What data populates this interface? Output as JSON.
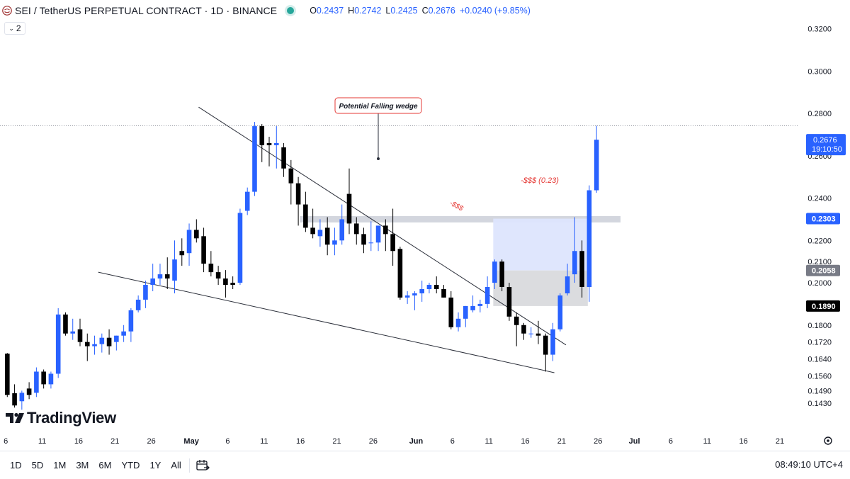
{
  "header": {
    "symbol_title": "SEI / TetherUS PERPETUAL CONTRACT · 1D · BINANCE",
    "ohlc": [
      {
        "key": "O",
        "value": "0.2437"
      },
      {
        "key": "H",
        "value": "0.2742"
      },
      {
        "key": "L",
        "value": "0.2425"
      },
      {
        "key": "C",
        "value": "0.2676"
      }
    ],
    "change": "+0.0240 (+9.85%)",
    "legend_toggle": "2"
  },
  "colors": {
    "up": "#2962ff",
    "down": "#000000",
    "zone_gray": "#d1d4dc",
    "zone_blue": "#dbe4ff",
    "annotation_red": "#e53935"
  },
  "chart_data": {
    "type": "candlestick",
    "symbol": "SEIUSDT.P",
    "interval": "1D",
    "ylim": [
      0.1394,
      0.3276
    ],
    "y_ticks": [
      "0.3200",
      "0.3000",
      "0.2800",
      "0.2600",
      "0.2400",
      "0.2200",
      "0.2100",
      "0.2000",
      "0.1800",
      "0.1720",
      "0.1640",
      "0.1560",
      "0.1490",
      "0.1430"
    ],
    "x_ticks": [
      "6",
      "11",
      "16",
      "21",
      "26",
      "May",
      "6",
      "11",
      "16",
      "21",
      "26",
      "Jun",
      "6",
      "11",
      "16",
      "21",
      "26",
      "Jul",
      "6",
      "11",
      "16",
      "21"
    ],
    "candles": [
      {
        "o": 0.1665,
        "h": 0.1668,
        "l": 0.146,
        "c": 0.147
      },
      {
        "o": 0.1478,
        "h": 0.152,
        "l": 0.141,
        "c": 0.142
      },
      {
        "o": 0.144,
        "h": 0.149,
        "l": 0.14,
        "c": 0.148
      },
      {
        "o": 0.15,
        "h": 0.153,
        "l": 0.145,
        "c": 0.147
      },
      {
        "o": 0.148,
        "h": 0.16,
        "l": 0.146,
        "c": 0.158
      },
      {
        "o": 0.158,
        "h": 0.159,
        "l": 0.15,
        "c": 0.152
      },
      {
        "o": 0.152,
        "h": 0.158,
        "l": 0.15,
        "c": 0.157
      },
      {
        "o": 0.157,
        "h": 0.188,
        "l": 0.155,
        "c": 0.185
      },
      {
        "o": 0.185,
        "h": 0.186,
        "l": 0.175,
        "c": 0.176
      },
      {
        "o": 0.176,
        "h": 0.183,
        "l": 0.173,
        "c": 0.177
      },
      {
        "o": 0.178,
        "h": 0.183,
        "l": 0.17,
        "c": 0.172
      },
      {
        "o": 0.172,
        "h": 0.176,
        "l": 0.163,
        "c": 0.17
      },
      {
        "o": 0.17,
        "h": 0.175,
        "l": 0.166,
        "c": 0.171
      },
      {
        "o": 0.171,
        "h": 0.176,
        "l": 0.167,
        "c": 0.174
      },
      {
        "o": 0.174,
        "h": 0.178,
        "l": 0.166,
        "c": 0.17
      },
      {
        "o": 0.172,
        "h": 0.175,
        "l": 0.168,
        "c": 0.175
      },
      {
        "o": 0.175,
        "h": 0.18,
        "l": 0.172,
        "c": 0.177
      },
      {
        "o": 0.177,
        "h": 0.188,
        "l": 0.172,
        "c": 0.187
      },
      {
        "o": 0.187,
        "h": 0.194,
        "l": 0.186,
        "c": 0.192
      },
      {
        "o": 0.192,
        "h": 0.201,
        "l": 0.188,
        "c": 0.199
      },
      {
        "o": 0.199,
        "h": 0.209,
        "l": 0.196,
        "c": 0.202
      },
      {
        "o": 0.202,
        "h": 0.209,
        "l": 0.199,
        "c": 0.204
      },
      {
        "o": 0.204,
        "h": 0.212,
        "l": 0.197,
        "c": 0.202
      },
      {
        "o": 0.201,
        "h": 0.22,
        "l": 0.195,
        "c": 0.211
      },
      {
        "o": 0.215,
        "h": 0.221,
        "l": 0.208,
        "c": 0.213
      },
      {
        "o": 0.214,
        "h": 0.228,
        "l": 0.208,
        "c": 0.225
      },
      {
        "o": 0.225,
        "h": 0.23,
        "l": 0.219,
        "c": 0.221
      },
      {
        "o": 0.222,
        "h": 0.226,
        "l": 0.205,
        "c": 0.209
      },
      {
        "o": 0.209,
        "h": 0.215,
        "l": 0.203,
        "c": 0.205
      },
      {
        "o": 0.205,
        "h": 0.208,
        "l": 0.199,
        "c": 0.202
      },
      {
        "o": 0.202,
        "h": 0.206,
        "l": 0.193,
        "c": 0.199
      },
      {
        "o": 0.2,
        "h": 0.203,
        "l": 0.197,
        "c": 0.199
      },
      {
        "o": 0.2,
        "h": 0.235,
        "l": 0.199,
        "c": 0.233
      },
      {
        "o": 0.234,
        "h": 0.245,
        "l": 0.232,
        "c": 0.243
      },
      {
        "o": 0.243,
        "h": 0.276,
        "l": 0.241,
        "c": 0.274
      },
      {
        "o": 0.274,
        "h": 0.275,
        "l": 0.257,
        "c": 0.265
      },
      {
        "o": 0.266,
        "h": 0.269,
        "l": 0.255,
        "c": 0.265
      },
      {
        "o": 0.265,
        "h": 0.274,
        "l": 0.254,
        "c": 0.266
      },
      {
        "o": 0.264,
        "h": 0.266,
        "l": 0.25,
        "c": 0.254
      },
      {
        "o": 0.254,
        "h": 0.258,
        "l": 0.237,
        "c": 0.247
      },
      {
        "o": 0.247,
        "h": 0.25,
        "l": 0.227,
        "c": 0.237
      },
      {
        "o": 0.237,
        "h": 0.243,
        "l": 0.224,
        "c": 0.226
      },
      {
        "o": 0.226,
        "h": 0.235,
        "l": 0.221,
        "c": 0.223
      },
      {
        "o": 0.222,
        "h": 0.23,
        "l": 0.217,
        "c": 0.225
      },
      {
        "o": 0.226,
        "h": 0.231,
        "l": 0.213,
        "c": 0.218
      },
      {
        "o": 0.218,
        "h": 0.226,
        "l": 0.213,
        "c": 0.22
      },
      {
        "o": 0.22,
        "h": 0.237,
        "l": 0.218,
        "c": 0.23
      },
      {
        "o": 0.242,
        "h": 0.254,
        "l": 0.223,
        "c": 0.228
      },
      {
        "o": 0.228,
        "h": 0.231,
        "l": 0.218,
        "c": 0.223
      },
      {
        "o": 0.223,
        "h": 0.226,
        "l": 0.214,
        "c": 0.218
      },
      {
        "o": 0.219,
        "h": 0.229,
        "l": 0.215,
        "c": 0.219
      },
      {
        "o": 0.219,
        "h": 0.226,
        "l": 0.215,
        "c": 0.227
      },
      {
        "o": 0.227,
        "h": 0.23,
        "l": 0.215,
        "c": 0.223
      },
      {
        "o": 0.223,
        "h": 0.235,
        "l": 0.208,
        "c": 0.215
      },
      {
        "o": 0.216,
        "h": 0.217,
        "l": 0.192,
        "c": 0.193
      },
      {
        "o": 0.193,
        "h": 0.196,
        "l": 0.19,
        "c": 0.194
      },
      {
        "o": 0.194,
        "h": 0.196,
        "l": 0.187,
        "c": 0.195
      },
      {
        "o": 0.195,
        "h": 0.201,
        "l": 0.191,
        "c": 0.197
      },
      {
        "o": 0.197,
        "h": 0.2,
        "l": 0.195,
        "c": 0.199
      },
      {
        "o": 0.199,
        "h": 0.203,
        "l": 0.195,
        "c": 0.197
      },
      {
        "o": 0.197,
        "h": 0.199,
        "l": 0.193,
        "c": 0.193
      },
      {
        "o": 0.193,
        "h": 0.196,
        "l": 0.178,
        "c": 0.179
      },
      {
        "o": 0.179,
        "h": 0.186,
        "l": 0.177,
        "c": 0.183
      },
      {
        "o": 0.183,
        "h": 0.189,
        "l": 0.179,
        "c": 0.189
      },
      {
        "o": 0.187,
        "h": 0.194,
        "l": 0.186,
        "c": 0.189
      },
      {
        "o": 0.189,
        "h": 0.192,
        "l": 0.186,
        "c": 0.19
      },
      {
        "o": 0.19,
        "h": 0.203,
        "l": 0.188,
        "c": 0.198
      },
      {
        "o": 0.2,
        "h": 0.211,
        "l": 0.197,
        "c": 0.21
      },
      {
        "o": 0.21,
        "h": 0.211,
        "l": 0.196,
        "c": 0.198
      },
      {
        "o": 0.198,
        "h": 0.2,
        "l": 0.182,
        "c": 0.184
      },
      {
        "o": 0.184,
        "h": 0.186,
        "l": 0.17,
        "c": 0.18
      },
      {
        "o": 0.18,
        "h": 0.181,
        "l": 0.173,
        "c": 0.176
      },
      {
        "o": 0.176,
        "h": 0.179,
        "l": 0.174,
        "c": 0.176
      },
      {
        "o": 0.176,
        "h": 0.182,
        "l": 0.171,
        "c": 0.175
      },
      {
        "o": 0.175,
        "h": 0.176,
        "l": 0.158,
        "c": 0.166
      },
      {
        "o": 0.166,
        "h": 0.181,
        "l": 0.163,
        "c": 0.178
      },
      {
        "o": 0.178,
        "h": 0.195,
        "l": 0.177,
        "c": 0.194
      },
      {
        "o": 0.195,
        "h": 0.209,
        "l": 0.194,
        "c": 0.203
      },
      {
        "o": 0.204,
        "h": 0.231,
        "l": 0.2,
        "c": 0.215
      },
      {
        "o": 0.215,
        "h": 0.22,
        "l": 0.193,
        "c": 0.198
      },
      {
        "o": 0.198,
        "h": 0.246,
        "l": 0.191,
        "c": 0.2437
      },
      {
        "o": 0.2437,
        "h": 0.2742,
        "l": 0.2425,
        "c": 0.2676
      }
    ],
    "trendlines": [
      {
        "name": "upper-wedge-line",
        "from": [
          26.3,
          0.283
        ],
        "to": [
          76.8,
          0.1706
        ]
      },
      {
        "name": "lower-wedge-line",
        "from": [
          12.5,
          0.205
        ],
        "to": [
          75.2,
          0.1575
        ]
      }
    ],
    "zones": [
      {
        "name": "liquidity-zone",
        "x": [
          40.2,
          84.3
        ],
        "y": [
          0.2285,
          0.2315
        ]
      },
      {
        "name": "target-zone-blue",
        "x": [
          66.8,
          79.8
        ],
        "y": [
          0.2058,
          0.2303
        ]
      },
      {
        "name": "target-zone-gray",
        "x": [
          66.8,
          79.8
        ],
        "y": [
          0.189,
          0.2058
        ]
      }
    ],
    "annotations": [
      {
        "name": "falling-wedge-label",
        "text": "Potential Falling wedge"
      },
      {
        "name": "liquidity-label",
        "text": "-$$$ (0.23)"
      },
      {
        "name": "liquidity-small-label",
        "text": "-$$$"
      }
    ],
    "price_labels": [
      {
        "name": "current-price-label",
        "value": "0.2676",
        "countdown": "19:10:50"
      },
      {
        "name": "level-label-0.2303",
        "value": "0.2303"
      },
      {
        "name": "level-label-0.2058",
        "value": "0.2058"
      },
      {
        "name": "level-label-0.1890",
        "value": "0.1890"
      }
    ]
  },
  "bottom_bar": {
    "ranges": [
      "1D",
      "5D",
      "1M",
      "3M",
      "6M",
      "YTD",
      "1Y",
      "All"
    ],
    "clock": "08:49:10 UTC+4"
  },
  "branding": {
    "logo_text": "TradingView"
  }
}
